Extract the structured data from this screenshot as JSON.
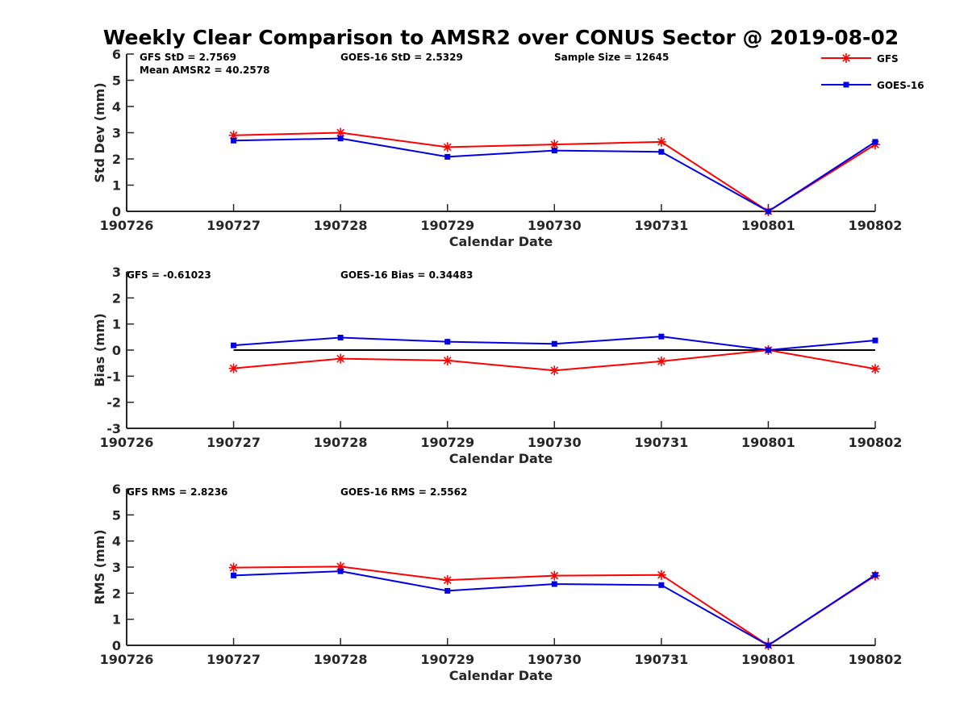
{
  "title": "Weekly Clear Comparison to AMSR2 over CONUS Sector @ 2019-08-02",
  "colors": {
    "GFS": "#ff0000",
    "GOES-16": "#0000e6",
    "zero_line": "#000000",
    "axis": "#262626"
  },
  "legend": {
    "placement": "top-right",
    "entries": [
      {
        "name": "GFS",
        "color": "#ff0000",
        "marker": "asterisk"
      },
      {
        "name": "GOES-16",
        "color": "#0000e6",
        "marker": "square"
      }
    ]
  },
  "chart_data": [
    {
      "type": "line",
      "categories": [
        "190726",
        "190727",
        "190728",
        "190729",
        "190730",
        "190731",
        "190801",
        "190802"
      ],
      "xlabel": "Calendar Date",
      "ylabel": "Std Dev (mm)",
      "ylim": [
        0,
        6
      ],
      "yticks": [
        "0",
        "1",
        "2",
        "3",
        "4",
        "5",
        "6"
      ],
      "zero_line": false,
      "annotations": [
        "GFS StD = 2.7569",
        "Mean AMSR2 = 40.2578",
        "GOES-16 StD = 2.5329",
        "Sample Size = 12645"
      ],
      "series": [
        {
          "name": "GFS",
          "marker": "asterisk",
          "values": [
            null,
            2.9,
            3.0,
            2.45,
            2.55,
            2.65,
            0.0,
            2.55
          ]
        },
        {
          "name": "GOES-16",
          "marker": "square",
          "values": [
            null,
            2.7,
            2.78,
            2.08,
            2.32,
            2.27,
            0.0,
            2.65
          ]
        }
      ]
    },
    {
      "type": "line",
      "categories": [
        "190726",
        "190727",
        "190728",
        "190729",
        "190730",
        "190731",
        "190801",
        "190802"
      ],
      "xlabel": "Calendar Date",
      "ylabel": "Bias (mm)",
      "ylim": [
        -3,
        3
      ],
      "yticks": [
        "-3",
        "-2",
        "-1",
        "0",
        "1",
        "2",
        "3"
      ],
      "zero_line": true,
      "annotations": [
        "GFS = -0.61023",
        "GOES-16 Bias  = 0.34483"
      ],
      "series": [
        {
          "name": "GFS",
          "marker": "asterisk",
          "values": [
            null,
            -0.7,
            -0.33,
            -0.4,
            -0.78,
            -0.43,
            0.0,
            -0.72
          ]
        },
        {
          "name": "GOES-16",
          "marker": "square",
          "values": [
            null,
            0.18,
            0.48,
            0.32,
            0.24,
            0.52,
            0.0,
            0.37
          ]
        }
      ]
    },
    {
      "type": "line",
      "categories": [
        "190726",
        "190727",
        "190728",
        "190729",
        "190730",
        "190731",
        "190801",
        "190802"
      ],
      "xlabel": "Calendar Date",
      "ylabel": "RMS (mm)",
      "ylim": [
        0,
        6
      ],
      "yticks": [
        "0",
        "1",
        "2",
        "3",
        "4",
        "5",
        "6"
      ],
      "zero_line": false,
      "annotations": [
        "GFS RMS = 2.8236",
        "GOES-16 RMS = 2.5562"
      ],
      "series": [
        {
          "name": "GFS",
          "marker": "asterisk",
          "values": [
            null,
            2.98,
            3.02,
            2.5,
            2.67,
            2.7,
            0.0,
            2.67
          ]
        },
        {
          "name": "GOES-16",
          "marker": "square",
          "values": [
            null,
            2.68,
            2.84,
            2.09,
            2.35,
            2.31,
            0.0,
            2.7
          ]
        }
      ]
    }
  ]
}
